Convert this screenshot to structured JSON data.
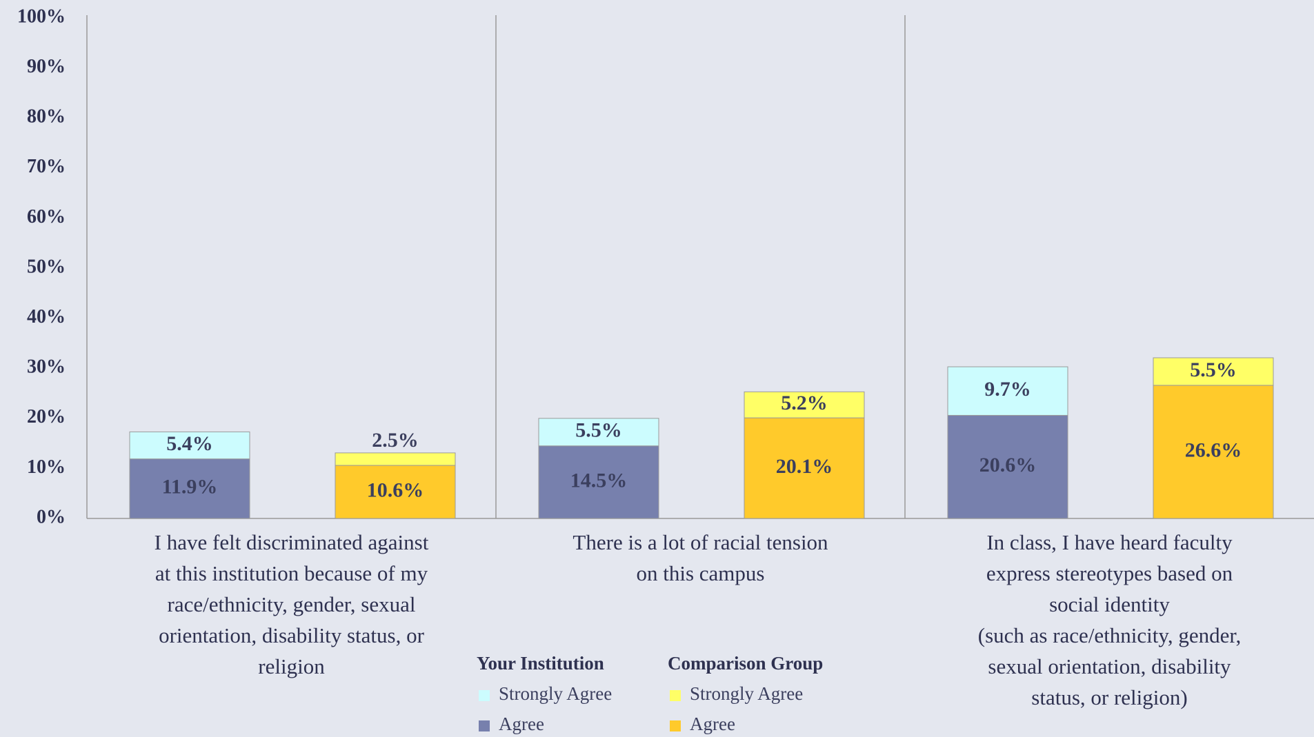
{
  "chart_data": {
    "type": "stacked-bar",
    "categories": [
      "I have felt discriminated against\nat this institution because of my\nrace/ethnicity, gender, sexual\norientation, disability status, or\nreligion",
      "There is a lot of racial tension\non this campus",
      "In class, I have heard faculty\nexpress stereotypes based on\nsocial identity\n(such as race/ethnicity, gender,\nsexual orientation, disability\nstatus, or religion)"
    ],
    "groups": [
      {
        "name": "Your Institution",
        "series": [
          {
            "name": "Strongly Agree",
            "color": "#ccfcfe",
            "values": [
              5.4,
              5.5,
              9.7
            ],
            "value_labels": [
              "5.4%",
              "5.5%",
              "9.7%"
            ]
          },
          {
            "name": "Agree",
            "color": "#7780ad",
            "values": [
              11.9,
              14.5,
              20.6
            ],
            "value_labels": [
              "11.9%",
              "14.5%",
              "20.6%"
            ]
          }
        ]
      },
      {
        "name": "Comparison Group",
        "series": [
          {
            "name": "Strongly Agree",
            "color": "#ffff66",
            "values": [
              2.5,
              5.2,
              5.5
            ],
            "value_labels": [
              "2.5%",
              "5.2%",
              "5.5%"
            ]
          },
          {
            "name": "Agree",
            "color": "#ffca2b",
            "values": [
              10.6,
              20.1,
              26.6
            ],
            "value_labels": [
              "10.6%",
              "20.1%",
              "26.6%"
            ]
          }
        ]
      }
    ],
    "ylim": [
      0,
      100
    ],
    "yticks": [
      {
        "value": 0,
        "label": "0%"
      },
      {
        "value": 10,
        "label": "10%"
      },
      {
        "value": 20,
        "label": "20%"
      },
      {
        "value": 30,
        "label": "30%"
      },
      {
        "value": 40,
        "label": "40%"
      },
      {
        "value": 50,
        "label": "50%"
      },
      {
        "value": 60,
        "label": "60%"
      },
      {
        "value": 70,
        "label": "70%"
      },
      {
        "value": 80,
        "label": "80%"
      },
      {
        "value": 90,
        "label": "90%"
      },
      {
        "value": 100,
        "label": "100%"
      }
    ]
  }
}
